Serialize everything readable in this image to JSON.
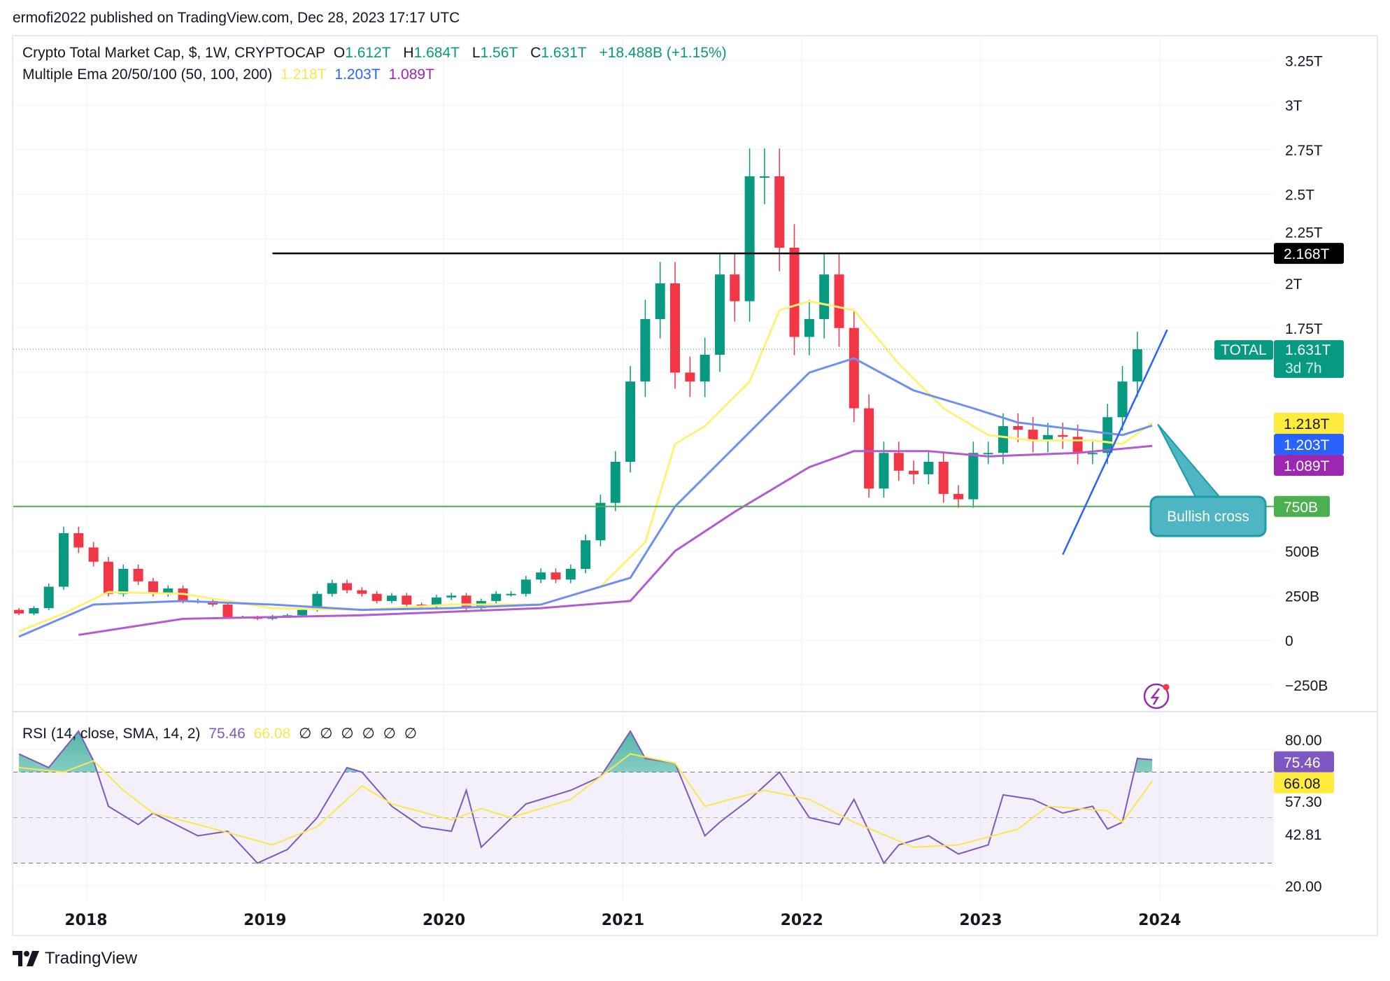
{
  "header": {
    "published": "ermofi2022 published on TradingView.com, Dec 28, 2023 17:17 UTC"
  },
  "legend": {
    "symbol": "Crypto Total Market Cap, $, 1W, CRYPTOCAP",
    "o_label": "O",
    "o": "1.612T",
    "h_label": "H",
    "h": "1.684T",
    "l_label": "L",
    "l": "1.56T",
    "c_label": "C",
    "c": "1.631T",
    "change": "+18.488B (+1.15%)",
    "ema_title": "Multiple Ema 20/50/100 (50, 100, 200)",
    "ema_values": [
      "1.218T",
      "1.203T",
      "1.089T"
    ],
    "rsi_title": "RSI (14, close, SMA, 14, 2)",
    "rsi_value": "75.46",
    "rsi_sma_value": "66.08",
    "rsi_extras": [
      "∅",
      "∅",
      "∅",
      "∅",
      "∅",
      "∅"
    ]
  },
  "colors": {
    "up": "#089981",
    "down": "#f23645",
    "ema50": "#fff176",
    "ema100": "#6d8ff0",
    "ema200": "#b45bcf",
    "rsi": "#7e57c2",
    "rsi_sma": "#fbe64f",
    "support": "#4caf50",
    "resistance": "#000000",
    "trend": "#2962ff",
    "callout": "#4db6c2"
  },
  "footer": {
    "brand": "TradingView"
  },
  "chart_data": [
    {
      "type": "candlestick",
      "title": "Crypto Total Market Cap, $, 1W, CRYPTOCAP",
      "unit": "T (trillion USD)",
      "x_ticks": [
        "2018",
        "2019",
        "2020",
        "2021",
        "2022",
        "2023",
        "2024"
      ],
      "y_ticks": [
        "3.25T",
        "3T",
        "2.75T",
        "2.5T",
        "2.25T",
        "2T",
        "1.75T",
        "500B",
        "250B",
        "0",
        "−250B"
      ],
      "y_tick_values": [
        3.25,
        3,
        2.75,
        2.5,
        2.25,
        2,
        1.75,
        0.5,
        0.25,
        0,
        -0.25
      ],
      "ylim": [
        -0.35,
        3.35
      ],
      "grid": true,
      "closes_monthly_approx": {
        "start": "2017-07",
        "open": 0.1,
        "values": [
          0.17,
          0.15,
          0.18,
          0.3,
          0.6,
          0.52,
          0.44,
          0.26,
          0.4,
          0.33,
          0.26,
          0.29,
          0.22,
          0.22,
          0.2,
          0.13,
          0.13,
          0.12,
          0.135,
          0.14,
          0.17,
          0.26,
          0.32,
          0.28,
          0.26,
          0.22,
          0.25,
          0.2,
          0.19,
          0.24,
          0.25,
          0.18,
          0.22,
          0.26,
          0.26,
          0.34,
          0.38,
          0.34,
          0.4,
          0.56,
          0.77,
          1.0,
          1.45,
          1.8,
          2.0,
          1.5,
          1.45,
          1.6,
          2.05,
          1.9,
          2.6,
          2.6,
          2.2,
          1.7,
          1.8,
          2.05,
          1.75,
          1.3,
          0.85,
          1.05,
          0.95,
          0.93,
          1.0,
          0.82,
          0.79,
          1.05,
          1.05,
          1.2,
          1.18,
          1.12,
          1.15,
          1.14,
          1.05,
          1.05,
          1.25,
          1.45,
          1.631
        ]
      },
      "ema_series": [
        {
          "name": "EMA 50",
          "value_label": "1.218T",
          "points": [
            [
              "2017-08",
              0.05
            ],
            [
              "2017-11",
              0.15
            ],
            [
              "2018-02",
              0.27
            ],
            [
              "2018-07",
              0.26
            ],
            [
              "2019-01",
              0.18
            ],
            [
              "2019-07",
              0.17
            ],
            [
              "2020-01",
              0.2
            ],
            [
              "2020-07",
              0.2
            ],
            [
              "2020-11",
              0.3
            ],
            [
              "2021-02",
              0.55
            ],
            [
              "2021-04",
              1.1
            ],
            [
              "2021-06",
              1.2
            ],
            [
              "2021-09",
              1.45
            ],
            [
              "2021-11",
              1.85
            ],
            [
              "2022-01",
              1.9
            ],
            [
              "2022-04",
              1.85
            ],
            [
              "2022-07",
              1.55
            ],
            [
              "2022-10",
              1.3
            ],
            [
              "2023-01",
              1.15
            ],
            [
              "2023-04",
              1.12
            ],
            [
              "2023-08",
              1.12
            ],
            [
              "2023-10",
              1.1
            ],
            [
              "2023-12",
              1.218
            ]
          ]
        },
        {
          "name": "EMA 100",
          "value_label": "1.203T",
          "points": [
            [
              "2017-08",
              0.02
            ],
            [
              "2018-01",
              0.2
            ],
            [
              "2018-07",
              0.22
            ],
            [
              "2019-01",
              0.2
            ],
            [
              "2019-07",
              0.17
            ],
            [
              "2020-01",
              0.18
            ],
            [
              "2020-07",
              0.2
            ],
            [
              "2021-01",
              0.35
            ],
            [
              "2021-04",
              0.75
            ],
            [
              "2021-07",
              1.0
            ],
            [
              "2021-10",
              1.25
            ],
            [
              "2022-01",
              1.5
            ],
            [
              "2022-04",
              1.58
            ],
            [
              "2022-08",
              1.4
            ],
            [
              "2022-12",
              1.3
            ],
            [
              "2023-03",
              1.22
            ],
            [
              "2023-07",
              1.18
            ],
            [
              "2023-10",
              1.15
            ],
            [
              "2023-12",
              1.203
            ]
          ]
        },
        {
          "name": "EMA 200",
          "value_label": "1.089T",
          "points": [
            [
              "2017-12",
              0.03
            ],
            [
              "2018-07",
              0.12
            ],
            [
              "2019-01",
              0.13
            ],
            [
              "2019-07",
              0.14
            ],
            [
              "2020-01",
              0.16
            ],
            [
              "2020-07",
              0.18
            ],
            [
              "2021-01",
              0.22
            ],
            [
              "2021-04",
              0.5
            ],
            [
              "2021-08",
              0.72
            ],
            [
              "2022-01",
              0.97
            ],
            [
              "2022-04",
              1.06
            ],
            [
              "2022-09",
              1.06
            ],
            [
              "2023-01",
              1.03
            ],
            [
              "2023-07",
              1.05
            ],
            [
              "2023-12",
              1.089
            ]
          ]
        }
      ],
      "horizontal_lines": [
        {
          "label": "2.168T",
          "value": 2.168,
          "from": "2019-01"
        },
        {
          "label": "750B",
          "value": 0.75,
          "from": "2017-07"
        }
      ],
      "trend_line": {
        "from": [
          "2023-06",
          0.48
        ],
        "to": [
          "2024-01",
          1.74
        ]
      },
      "last_price": {
        "tag": "TOTAL",
        "label": "1.631T",
        "countdown": "3d 7h",
        "value": 1.631
      },
      "annotation": {
        "text": "Bullish cross",
        "points_to": [
          "2023-12",
          1.21
        ]
      }
    },
    {
      "type": "line",
      "title": "RSI (14, close, SMA, 14, 2)",
      "y_ticks": [
        "80.00",
        "57.30",
        "42.81",
        "20.00"
      ],
      "y_tick_values": [
        80,
        57.3,
        42.81,
        20
      ],
      "bands": [
        70,
        50,
        30
      ],
      "series": [
        {
          "name": "RSI",
          "value_label": "75.46",
          "points": [
            [
              "2017-08",
              78
            ],
            [
              "2017-10",
              72
            ],
            [
              "2017-12",
              88
            ],
            [
              "2018-01",
              75
            ],
            [
              "2018-02",
              55
            ],
            [
              "2018-04",
              47
            ],
            [
              "2018-05",
              52
            ],
            [
              "2018-08",
              42
            ],
            [
              "2018-10",
              44
            ],
            [
              "2018-12",
              30
            ],
            [
              "2019-02",
              36
            ],
            [
              "2019-04",
              50
            ],
            [
              "2019-06",
              72
            ],
            [
              "2019-07",
              70
            ],
            [
              "2019-09",
              55
            ],
            [
              "2019-11",
              46
            ],
            [
              "2020-01",
              44
            ],
            [
              "2020-02",
              62
            ],
            [
              "2020-03",
              37
            ],
            [
              "2020-06",
              56
            ],
            [
              "2020-09",
              62
            ],
            [
              "2020-11",
              68
            ],
            [
              "2021-01",
              88
            ],
            [
              "2021-02",
              76
            ],
            [
              "2021-04",
              74
            ],
            [
              "2021-06",
              42
            ],
            [
              "2021-07",
              48
            ],
            [
              "2021-09",
              58
            ],
            [
              "2021-11",
              70
            ],
            [
              "2022-01",
              50
            ],
            [
              "2022-03",
              47
            ],
            [
              "2022-04",
              58
            ],
            [
              "2022-06",
              30
            ],
            [
              "2022-07",
              38
            ],
            [
              "2022-09",
              42
            ],
            [
              "2022-11",
              34
            ],
            [
              "2023-01",
              38
            ],
            [
              "2023-02",
              60
            ],
            [
              "2023-04",
              58
            ],
            [
              "2023-06",
              52
            ],
            [
              "2023-08",
              55
            ],
            [
              "2023-09",
              45
            ],
            [
              "2023-10",
              48
            ],
            [
              "2023-11",
              76
            ],
            [
              "2023-12",
              75.46
            ]
          ]
        },
        {
          "name": "RSI-based MA",
          "value_label": "66.08",
          "points": [
            [
              "2017-08",
              72
            ],
            [
              "2017-11",
              70
            ],
            [
              "2018-01",
              75
            ],
            [
              "2018-03",
              62
            ],
            [
              "2018-05",
              52
            ],
            [
              "2018-08",
              47
            ],
            [
              "2019-01",
              38
            ],
            [
              "2019-04",
              46
            ],
            [
              "2019-07",
              64
            ],
            [
              "2019-09",
              56
            ],
            [
              "2020-01",
              49
            ],
            [
              "2020-03",
              54
            ],
            [
              "2020-05",
              50
            ],
            [
              "2020-09",
              58
            ],
            [
              "2021-01",
              78
            ],
            [
              "2021-04",
              74
            ],
            [
              "2021-06",
              55
            ],
            [
              "2021-10",
              62
            ],
            [
              "2022-01",
              58
            ],
            [
              "2022-04",
              48
            ],
            [
              "2022-08",
              37
            ],
            [
              "2022-11",
              38
            ],
            [
              "2023-03",
              45
            ],
            [
              "2023-05",
              55
            ],
            [
              "2023-09",
              53
            ],
            [
              "2023-10",
              48
            ],
            [
              "2023-12",
              66.08
            ]
          ]
        }
      ]
    }
  ]
}
